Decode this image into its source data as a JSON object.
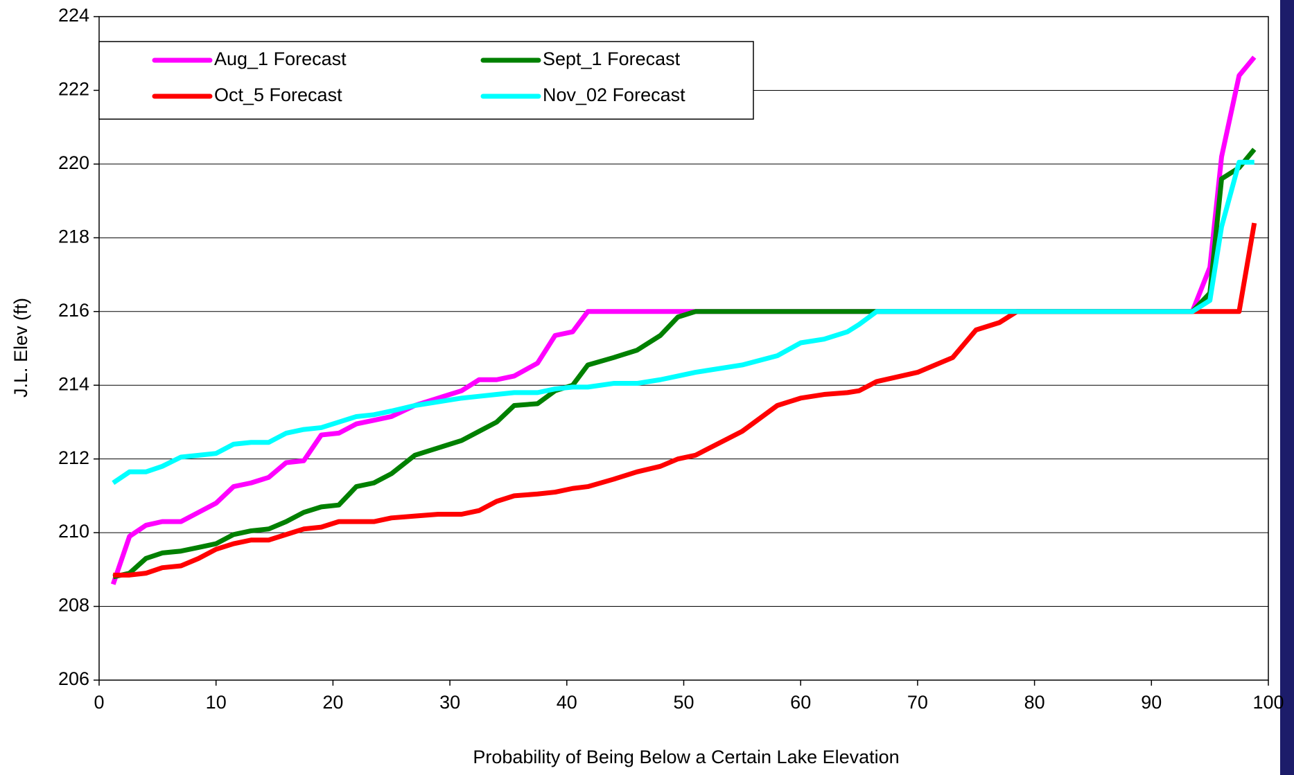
{
  "chart_data": {
    "type": "line",
    "x_label": "Probability of Being Below a Certain Lake Elevation",
    "y_label": "J.L. Elev (ft)",
    "x": [
      1.2,
      2.6,
      4,
      5.4,
      7,
      8.5,
      10,
      11.5,
      13,
      14.5,
      16,
      17.5,
      19,
      20.5,
      22,
      23.5,
      25,
      27,
      29,
      31,
      32.5,
      34,
      35.5,
      37.5,
      39,
      40.5,
      41.8,
      44,
      46,
      48,
      49.5,
      51,
      55,
      58,
      60,
      62,
      64,
      65,
      66.5,
      70,
      73,
      75,
      77,
      78.5,
      85,
      93.5,
      95,
      96,
      97.5,
      98.8
    ],
    "series": [
      {
        "name": "Aug_1 Forecast",
        "color": "#ff00ff",
        "values": [
          208.6,
          209.9,
          210.2,
          210.3,
          210.3,
          210.55,
          210.8,
          211.25,
          211.35,
          211.5,
          211.9,
          211.95,
          212.65,
          212.7,
          212.95,
          213.05,
          213.15,
          213.45,
          213.65,
          213.85,
          214.15,
          214.15,
          214.25,
          214.6,
          215.35,
          215.45,
          216,
          216,
          216,
          216,
          216,
          216,
          216,
          216,
          216,
          216,
          216,
          216,
          216,
          216,
          216,
          216,
          216,
          216,
          216,
          216,
          217.2,
          220.2,
          222.4,
          222.9
        ]
      },
      {
        "name": "Sept_1 Forecast",
        "color": "#008000",
        "values": [
          208.8,
          208.9,
          209.3,
          209.45,
          209.5,
          209.6,
          209.7,
          209.95,
          210.05,
          210.1,
          210.3,
          210.55,
          210.7,
          210.75,
          211.25,
          211.35,
          211.6,
          212.1,
          212.3,
          212.5,
          212.75,
          213.0,
          213.45,
          213.5,
          213.85,
          214.0,
          214.55,
          214.75,
          214.95,
          215.35,
          215.85,
          216,
          216,
          216,
          216,
          216,
          216,
          216,
          216,
          216,
          216,
          216,
          216,
          216,
          216,
          216,
          216.5,
          219.6,
          219.9,
          220.4
        ]
      },
      {
        "name": "Oct_5 Forecast",
        "color": "#ff0000",
        "values": [
          208.85,
          208.85,
          208.9,
          209.05,
          209.1,
          209.3,
          209.55,
          209.7,
          209.8,
          209.8,
          209.95,
          210.1,
          210.15,
          210.3,
          210.3,
          210.3,
          210.4,
          210.45,
          210.5,
          210.5,
          210.6,
          210.85,
          211.0,
          211.05,
          211.1,
          211.2,
          211.25,
          211.45,
          211.65,
          211.8,
          212.0,
          212.1,
          212.75,
          213.45,
          213.65,
          213.75,
          213.8,
          213.85,
          214.1,
          214.35,
          214.75,
          215.5,
          215.7,
          216,
          216,
          216,
          216,
          216,
          216,
          218.4
        ]
      },
      {
        "name": "Nov_02 Forecast",
        "color": "#00ffff",
        "values": [
          211.35,
          211.65,
          211.65,
          211.8,
          212.05,
          212.1,
          212.15,
          212.4,
          212.45,
          212.45,
          212.7,
          212.8,
          212.85,
          213.0,
          213.15,
          213.2,
          213.3,
          213.45,
          213.55,
          213.65,
          213.7,
          213.75,
          213.8,
          213.8,
          213.9,
          213.95,
          213.95,
          214.05,
          214.05,
          214.15,
          214.25,
          214.35,
          214.55,
          214.8,
          215.15,
          215.25,
          215.45,
          215.65,
          216,
          216,
          216,
          216,
          216,
          216,
          216,
          216,
          216.3,
          218.3,
          220.05,
          220.05
        ]
      }
    ],
    "xlim": [
      0,
      100
    ],
    "xticks": [
      0,
      10,
      20,
      30,
      40,
      50,
      60,
      70,
      80,
      90,
      100
    ],
    "ylim": [
      206,
      224
    ],
    "yticks": [
      206,
      208,
      210,
      212,
      214,
      216,
      218,
      220,
      222,
      224
    ],
    "grid": true
  }
}
